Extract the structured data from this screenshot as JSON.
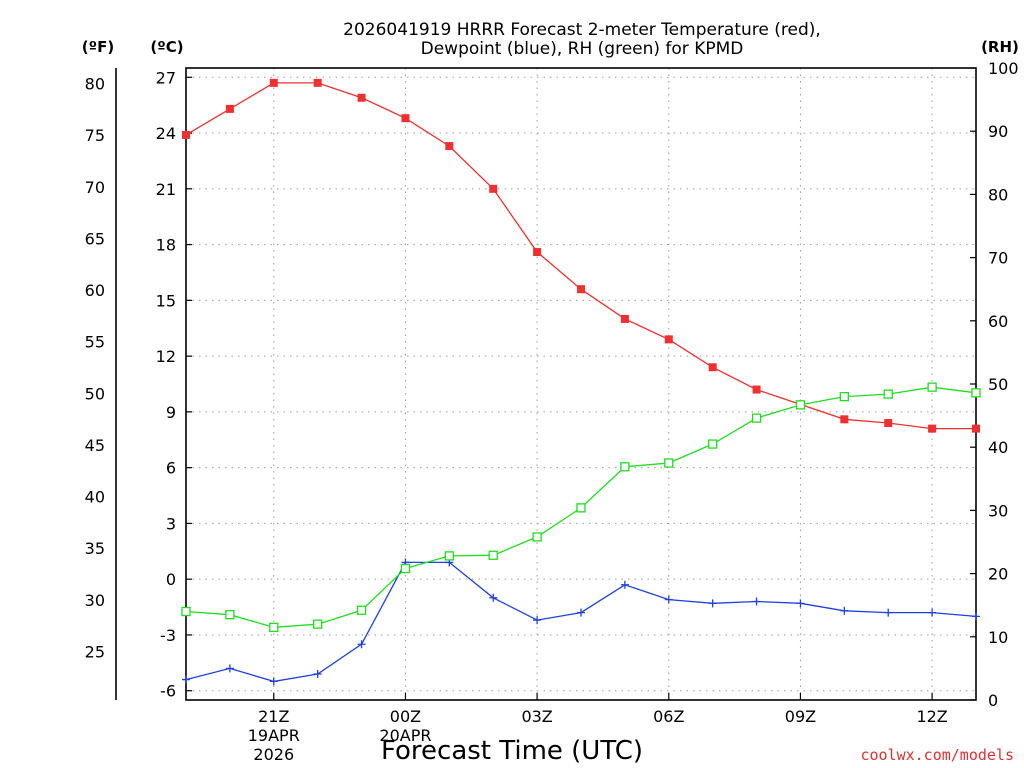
{
  "chart_data": {
    "type": "line",
    "title": [
      "2026041919 HRRR Forecast 2-meter Temperature (red),",
      "Dewpoint (blue), RH (green) for KPMD"
    ],
    "xlabel": "Forecast Time (UTC)",
    "credit": "coolwx.com/models",
    "units": {
      "fahrenheit": "(ºF)",
      "celsius": "(ºC)",
      "rh": "(RH)"
    },
    "x_hours": [
      0,
      1,
      2,
      3,
      4,
      5,
      6,
      7,
      8,
      9,
      10,
      11,
      12,
      13,
      14,
      15,
      16,
      17,
      18
    ],
    "xlim": [
      0,
      18
    ],
    "x_ticks": [
      {
        "hour": 2,
        "label": "21Z",
        "sub": [
          "19APR",
          "2026"
        ]
      },
      {
        "hour": 5,
        "label": "00Z",
        "sub": [
          "20APR"
        ]
      },
      {
        "hour": 8,
        "label": "03Z",
        "sub": []
      },
      {
        "hour": 11,
        "label": "06Z",
        "sub": []
      },
      {
        "hour": 14,
        "label": "09Z",
        "sub": []
      },
      {
        "hour": 17,
        "label": "12Z",
        "sub": []
      }
    ],
    "ylim_c": [
      -6.5,
      27.5
    ],
    "y_ticks_c": [
      "-6",
      "-3",
      "0",
      "3",
      "6",
      "9",
      "12",
      "15",
      "18",
      "21",
      "24",
      "27"
    ],
    "y_ticks_f": [
      "25",
      "30",
      "35",
      "40",
      "45",
      "50",
      "55",
      "60",
      "65",
      "70",
      "75",
      "80"
    ],
    "ylim_rh": [
      0,
      100
    ],
    "y_ticks_rh": [
      "0",
      "10",
      "20",
      "30",
      "40",
      "50",
      "60",
      "70",
      "80",
      "90",
      "100"
    ],
    "series": [
      {
        "name": "Temperature",
        "units": "C",
        "color": "#f03030",
        "marker": "filled-square",
        "values": [
          23.9,
          25.3,
          26.7,
          26.7,
          25.9,
          24.8,
          23.3,
          21.0,
          17.6,
          15.6,
          14.0,
          12.9,
          11.4,
          10.2,
          9.4,
          8.6,
          8.4,
          8.1,
          8.1
        ]
      },
      {
        "name": "Dewpoint",
        "units": "C",
        "color": "#2040e0",
        "marker": "plus",
        "values": [
          -5.4,
          -4.8,
          -5.5,
          -5.1,
          -3.5,
          0.9,
          0.9,
          -1.0,
          -2.2,
          -1.8,
          -0.3,
          -1.1,
          -1.3,
          -1.2,
          -1.3,
          -1.7,
          -1.8,
          -1.8,
          -2.0
        ]
      },
      {
        "name": "Relative Humidity",
        "units": "%",
        "color": "#20dd20",
        "marker": "open-square",
        "values": [
          14,
          13.5,
          11.5,
          12,
          14.2,
          20.8,
          22.8,
          22.9,
          25.8,
          30.4,
          36.9,
          37.5,
          40.5,
          44.6,
          46.7,
          48,
          48.4,
          49.5,
          48.6
        ]
      }
    ]
  }
}
